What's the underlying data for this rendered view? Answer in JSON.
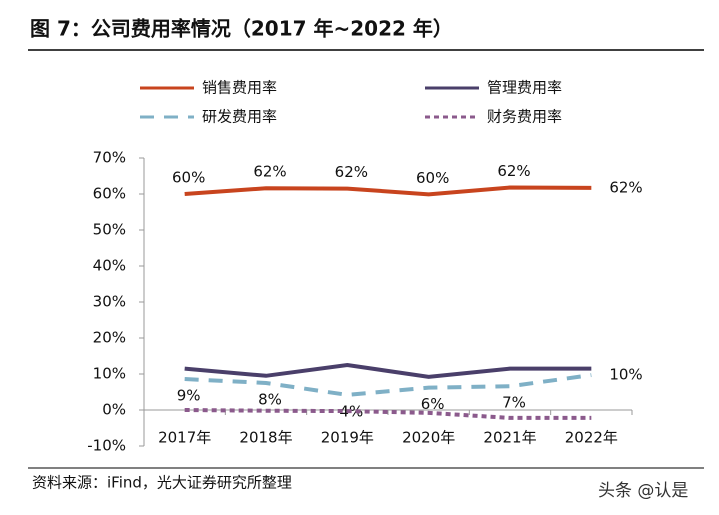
{
  "chart_data": {
    "type": "line",
    "title": "图 7：公司费用率情况（2017 年~2022 年）",
    "source": "资料来源：iFind，光大证券研究所整理",
    "watermark": "头条 @认是",
    "categories": [
      "2017年",
      "2018年",
      "2019年",
      "2020年",
      "2021年",
      "2022年"
    ],
    "ylim": [
      -10,
      70
    ],
    "yticks": [
      {
        "value": -10,
        "label": "-10%"
      },
      {
        "value": 0,
        "label": "0%"
      },
      {
        "value": 10,
        "label": "10%"
      },
      {
        "value": 20,
        "label": "20%"
      },
      {
        "value": 30,
        "label": "30%"
      },
      {
        "value": 40,
        "label": "40%"
      },
      {
        "value": 50,
        "label": "50%"
      },
      {
        "value": 60,
        "label": "60%"
      },
      {
        "value": 70,
        "label": "70%"
      }
    ],
    "grid": false,
    "legend": "top",
    "series": [
      {
        "name": "销售费用率",
        "color": "#c8441e",
        "line_style": "solid",
        "label_side": "above",
        "values": [
          60.0,
          61.6,
          61.5,
          59.9,
          61.8,
          61.7
        ],
        "value_labels": [
          "60%",
          "62%",
          "62%",
          "60%",
          "62%",
          "62%"
        ]
      },
      {
        "name": "管理费用率",
        "color": "#4a3f6a",
        "line_style": "solid",
        "values": [
          11.5,
          9.5,
          12.5,
          9.2,
          11.5,
          11.5
        ]
      },
      {
        "name": "研发费用率",
        "color": "#7fb0c6",
        "line_style": "long-dash",
        "label_side": "below",
        "values": [
          8.6,
          7.5,
          4.2,
          6.2,
          6.6,
          9.7
        ],
        "value_labels": [
          "9%",
          "8%",
          "4%",
          "6%",
          "7%",
          "10%"
        ]
      },
      {
        "name": "财务费用率",
        "color": "#8b5a8c",
        "line_style": "short-dash",
        "values": [
          0.0,
          -0.2,
          -0.3,
          -0.8,
          -2.2,
          -2.2
        ]
      }
    ]
  }
}
